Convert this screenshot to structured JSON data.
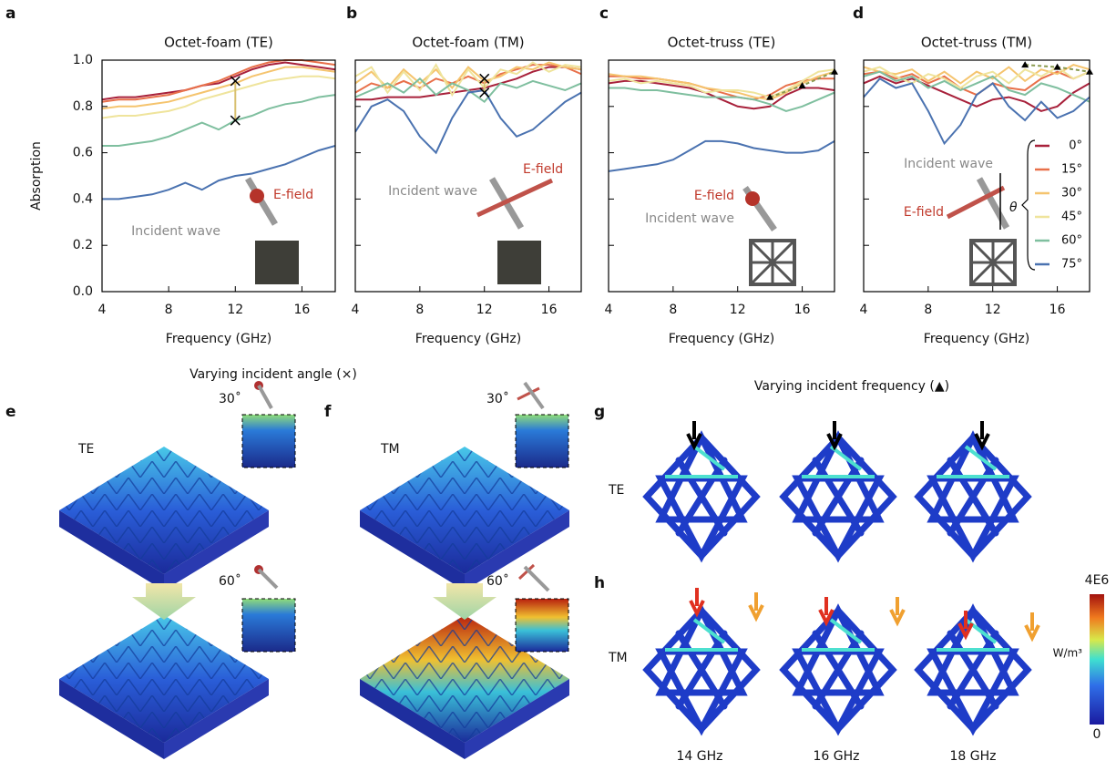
{
  "chart_data": [
    {
      "type": "line",
      "label": "a",
      "title": "Octet-foam (TE)",
      "xlabel": "Frequency (GHz)",
      "ylabel": "Absorption",
      "x": [
        4,
        5,
        6,
        7,
        8,
        9,
        10,
        11,
        12,
        13,
        14,
        15,
        16,
        17,
        18
      ],
      "xlim": [
        4,
        18
      ],
      "xticks": [
        4,
        8,
        12,
        16
      ],
      "ylim": [
        0,
        1
      ],
      "yticks": [
        {
          "value": 0,
          "label": "0.0"
        },
        0.2,
        0.4,
        0.6,
        0.8,
        {
          "value": 1,
          "label": "1.0"
        }
      ],
      "show_ytick_labels": true,
      "series": [
        {
          "color": "#a8213b",
          "values": [
            0.83,
            0.84,
            0.84,
            0.85,
            0.86,
            0.87,
            0.89,
            0.9,
            0.93,
            0.96,
            0.98,
            0.99,
            0.98,
            0.97,
            0.96
          ]
        },
        {
          "color": "#e8704a",
          "values": [
            0.82,
            0.83,
            0.83,
            0.84,
            0.85,
            0.87,
            0.89,
            0.91,
            0.94,
            0.97,
            0.99,
            1.0,
            1.0,
            0.99,
            0.98
          ]
        },
        {
          "color": "#f5c46e",
          "values": [
            0.79,
            0.8,
            0.8,
            0.81,
            0.82,
            0.84,
            0.86,
            0.88,
            0.9,
            0.93,
            0.95,
            0.97,
            0.97,
            0.96,
            0.95
          ]
        },
        {
          "color": "#efe49c",
          "values": [
            0.75,
            0.76,
            0.76,
            0.77,
            0.78,
            0.8,
            0.83,
            0.85,
            0.87,
            0.89,
            0.91,
            0.92,
            0.93,
            0.93,
            0.92
          ]
        },
        {
          "color": "#7fbf9f",
          "values": [
            0.63,
            0.63,
            0.64,
            0.65,
            0.67,
            0.7,
            0.73,
            0.7,
            0.74,
            0.76,
            0.79,
            0.81,
            0.82,
            0.84,
            0.85
          ]
        },
        {
          "color": "#4a72b0",
          "values": [
            0.4,
            0.4,
            0.41,
            0.42,
            0.44,
            0.47,
            0.44,
            0.48,
            0.5,
            0.51,
            0.53,
            0.55,
            0.58,
            0.61,
            0.63
          ]
        }
      ],
      "markers": {
        "shape": "cross",
        "x": [
          12,
          12
        ],
        "y": [
          0.91,
          0.74
        ]
      },
      "annotations": {
        "efield": "E-field",
        "incident": "Incident wave"
      }
    },
    {
      "type": "line",
      "label": "b",
      "title": "Octet-foam (TM)",
      "xlabel": "Frequency (GHz)",
      "x": [
        4,
        5,
        6,
        7,
        8,
        9,
        10,
        11,
        12,
        13,
        14,
        15,
        16,
        17,
        18
      ],
      "xlim": [
        4,
        18
      ],
      "xticks": [
        4,
        8,
        12,
        16
      ],
      "ylim": [
        0,
        1
      ],
      "yticks": [
        0,
        0.2,
        0.4,
        0.6,
        0.8,
        1
      ],
      "show_ytick_labels": false,
      "series": [
        {
          "color": "#a8213b",
          "values": [
            0.83,
            0.83,
            0.84,
            0.84,
            0.84,
            0.85,
            0.86,
            0.87,
            0.88,
            0.9,
            0.92,
            0.95,
            0.97,
            0.97,
            0.96
          ]
        },
        {
          "color": "#e8704a",
          "values": [
            0.86,
            0.9,
            0.88,
            0.91,
            0.88,
            0.92,
            0.9,
            0.93,
            0.9,
            0.94,
            0.96,
            0.98,
            0.98,
            0.97,
            0.94
          ]
        },
        {
          "color": "#f5c46e",
          "values": [
            0.9,
            0.95,
            0.88,
            0.96,
            0.9,
            0.96,
            0.88,
            0.97,
            0.91,
            0.93,
            0.97,
            0.96,
            0.99,
            0.97,
            0.96
          ]
        },
        {
          "color": "#efe49c",
          "values": [
            0.93,
            0.97,
            0.86,
            0.95,
            0.87,
            0.98,
            0.85,
            0.96,
            0.88,
            0.96,
            0.94,
            0.99,
            0.95,
            0.98,
            0.97
          ]
        },
        {
          "color": "#7fbf9f",
          "values": [
            0.84,
            0.87,
            0.9,
            0.86,
            0.92,
            0.85,
            0.9,
            0.87,
            0.82,
            0.9,
            0.88,
            0.91,
            0.89,
            0.87,
            0.9
          ]
        },
        {
          "color": "#4a72b0",
          "values": [
            0.69,
            0.8,
            0.83,
            0.78,
            0.67,
            0.6,
            0.75,
            0.86,
            0.87,
            0.75,
            0.67,
            0.7,
            0.76,
            0.82,
            0.86
          ]
        }
      ],
      "markers": {
        "shape": "cross",
        "x": [
          12,
          12
        ],
        "y": [
          0.92,
          0.86
        ]
      },
      "annotations": {
        "efield": "E-field",
        "incident": "Incident wave"
      }
    },
    {
      "type": "line",
      "label": "c",
      "title": "Octet-truss (TE)",
      "xlabel": "Frequency (GHz)",
      "x": [
        4,
        5,
        6,
        7,
        8,
        9,
        10,
        11,
        12,
        13,
        14,
        15,
        16,
        17,
        18
      ],
      "xlim": [
        4,
        18
      ],
      "xticks": [
        4,
        8,
        12,
        16
      ],
      "ylim": [
        0,
        1
      ],
      "yticks": [
        0,
        0.2,
        0.4,
        0.6,
        0.8,
        1
      ],
      "show_ytick_labels": false,
      "series": [
        {
          "color": "#a8213b",
          "values": [
            0.9,
            0.91,
            0.91,
            0.9,
            0.89,
            0.88,
            0.86,
            0.83,
            0.8,
            0.79,
            0.8,
            0.85,
            0.88,
            0.88,
            0.87
          ]
        },
        {
          "color": "#e8704a",
          "values": [
            0.93,
            0.93,
            0.92,
            0.92,
            0.91,
            0.9,
            0.88,
            0.86,
            0.84,
            0.83,
            0.85,
            0.89,
            0.91,
            0.92,
            0.92
          ]
        },
        {
          "color": "#f5c46e",
          "values": [
            0.94,
            0.93,
            0.93,
            0.92,
            0.91,
            0.9,
            0.88,
            0.87,
            0.86,
            0.84,
            0.83,
            0.86,
            0.9,
            0.93,
            0.95
          ]
        },
        {
          "color": "#efe49c",
          "values": [
            0.91,
            0.92,
            0.9,
            0.91,
            0.9,
            0.89,
            0.86,
            0.87,
            0.87,
            0.86,
            0.84,
            0.87,
            0.91,
            0.95,
            0.96
          ]
        },
        {
          "color": "#7fbf9f",
          "values": [
            0.88,
            0.88,
            0.87,
            0.87,
            0.86,
            0.85,
            0.84,
            0.84,
            0.84,
            0.83,
            0.81,
            0.78,
            0.8,
            0.83,
            0.86
          ]
        },
        {
          "color": "#4a72b0",
          "values": [
            0.52,
            0.53,
            0.54,
            0.55,
            0.57,
            0.61,
            0.65,
            0.65,
            0.64,
            0.62,
            0.61,
            0.6,
            0.6,
            0.61,
            0.65
          ]
        }
      ],
      "markers": {
        "shape": "triangle",
        "x": [
          14,
          16,
          18
        ],
        "y": [
          0.84,
          0.89,
          0.95
        ]
      },
      "annotations": {
        "efield": "E-field",
        "incident": "Incident wave"
      }
    },
    {
      "type": "line",
      "label": "d",
      "title": "Octet-truss (TM)",
      "xlabel": "Frequency (GHz)",
      "x": [
        4,
        5,
        6,
        7,
        8,
        9,
        10,
        11,
        12,
        13,
        14,
        15,
        16,
        17,
        18
      ],
      "xlim": [
        4,
        18
      ],
      "xticks": [
        4,
        8,
        12,
        16
      ],
      "ylim": [
        0,
        1
      ],
      "yticks": [
        0,
        0.2,
        0.4,
        0.6,
        0.8,
        1
      ],
      "show_ytick_labels": false,
      "series": [
        {
          "name": "0°",
          "color": "#a8213b",
          "values": [
            0.9,
            0.93,
            0.9,
            0.92,
            0.89,
            0.86,
            0.83,
            0.8,
            0.83,
            0.84,
            0.82,
            0.78,
            0.8,
            0.86,
            0.9
          ]
        },
        {
          "name": "15°",
          "color": "#e8704a",
          "values": [
            0.94,
            0.95,
            0.92,
            0.94,
            0.9,
            0.93,
            0.88,
            0.85,
            0.9,
            0.88,
            0.87,
            0.92,
            0.95,
            0.92,
            0.95
          ]
        },
        {
          "name": "30°",
          "color": "#f5c46e",
          "values": [
            0.97,
            0.95,
            0.94,
            0.96,
            0.91,
            0.95,
            0.9,
            0.95,
            0.92,
            0.97,
            0.91,
            0.96,
            0.94,
            0.98,
            0.96
          ]
        },
        {
          "name": "45°",
          "color": "#efe49c",
          "values": [
            0.95,
            0.97,
            0.93,
            0.9,
            0.94,
            0.92,
            0.88,
            0.93,
            0.95,
            0.9,
            0.96,
            0.93,
            0.97,
            0.92,
            0.95
          ]
        },
        {
          "name": "60°",
          "color": "#7fbf9f",
          "values": [
            0.93,
            0.95,
            0.91,
            0.93,
            0.88,
            0.91,
            0.87,
            0.9,
            0.93,
            0.87,
            0.85,
            0.9,
            0.88,
            0.85,
            0.82
          ]
        },
        {
          "name": "75°",
          "color": "#4a72b0",
          "values": [
            0.84,
            0.92,
            0.88,
            0.9,
            0.78,
            0.64,
            0.72,
            0.85,
            0.9,
            0.8,
            0.74,
            0.82,
            0.75,
            0.78,
            0.84
          ]
        }
      ],
      "markers": {
        "shape": "triangle",
        "x": [
          14,
          16,
          18
        ],
        "y": [
          0.98,
          0.97,
          0.95
        ]
      },
      "legend": true,
      "annotations": {
        "efield": "E-field",
        "incident": "Incident wave",
        "angle": "θ"
      }
    }
  ],
  "figure": {
    "section_titles": [
      "Varying incident angle (×)",
      "Varying incident frequency (▲)"
    ],
    "panels": {
      "e": {
        "label": "e",
        "mode": "TE",
        "angles": [
          "30˚",
          "60˚"
        ]
      },
      "f": {
        "label": "f",
        "mode": "TM",
        "angles": [
          "30˚",
          "60˚"
        ]
      },
      "g": {
        "label": "g",
        "mode": "TE"
      },
      "h": {
        "label": "h",
        "mode": "TM"
      }
    },
    "frequencies": [
      "14 GHz",
      "16 GHz",
      "18 GHz"
    ],
    "colorbar": {
      "max": "4E6",
      "unit": "W/m³",
      "min": "0"
    }
  }
}
